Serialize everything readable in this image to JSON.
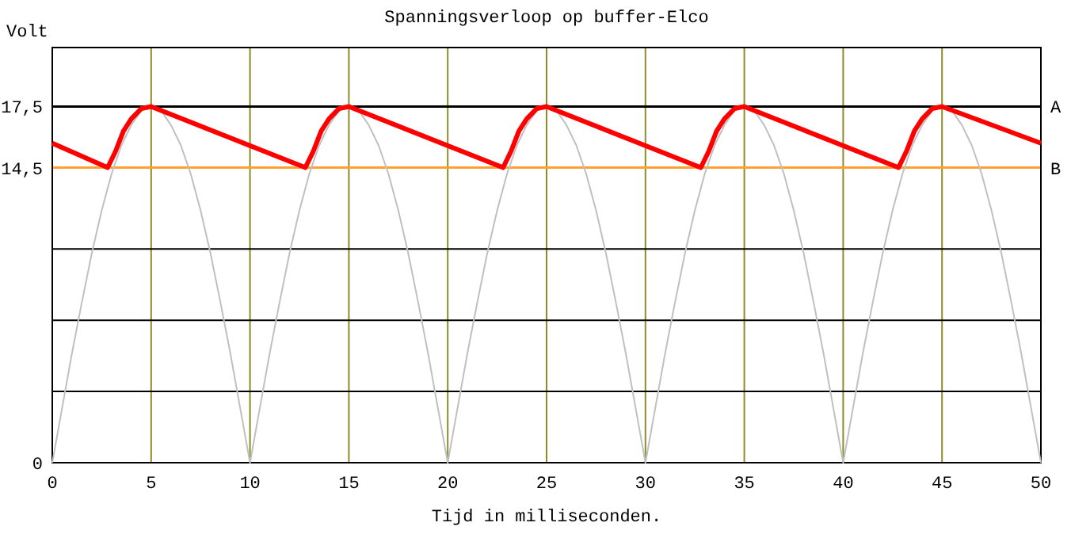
{
  "chart_data": {
    "type": "line",
    "title": "Spanningsverloop op buffer-Elco",
    "xlabel": "Tijd in milliseconden.",
    "ylabel": "Volt",
    "xlim": [
      0,
      50
    ],
    "xticks": [
      0,
      5,
      10,
      15,
      20,
      25,
      30,
      35,
      40,
      45,
      50
    ],
    "ylim": [
      0,
      20.4
    ],
    "yticks": [
      0,
      {
        "value": 3.5,
        "label": null
      },
      {
        "value": 7,
        "label": null
      },
      {
        "value": 10.5,
        "label": null
      },
      {
        "value": 14.5,
        "label": "14,5"
      },
      {
        "value": 17.5,
        "label": "17,5"
      }
    ],
    "grid": true,
    "line_style": "solid",
    "ref_lines": [
      {
        "axis": "y",
        "value": 17.5,
        "label": "A",
        "color": "#000000"
      },
      {
        "axis": "y",
        "value": 14.5,
        "label": "B",
        "color": "#ffa030"
      }
    ],
    "series": [
      {
        "color": "#c0c0c0",
        "x": [
          0,
          0.5,
          1,
          1.5,
          2,
          2.5,
          3,
          3.5,
          4,
          4.5,
          5,
          5.5,
          6,
          6.5,
          7,
          7.5,
          8,
          8.5,
          9,
          9.5,
          10,
          10.5,
          11,
          11.5,
          12,
          12.5,
          13,
          13.5,
          14,
          14.5,
          15,
          15.5,
          16,
          16.5,
          17,
          17.5,
          18,
          18.5,
          19,
          19.5,
          20,
          20.5,
          21,
          21.5,
          22,
          22.5,
          23,
          23.5,
          24,
          24.5,
          25,
          25.5,
          26,
          26.5,
          27,
          27.5,
          28,
          28.5,
          29,
          29.5,
          30,
          30.5,
          31,
          31.5,
          32,
          32.5,
          33,
          33.5,
          34,
          34.5,
          35,
          35.5,
          36,
          36.5,
          37,
          37.5,
          38,
          38.5,
          39,
          39.5,
          40,
          40.5,
          41,
          41.5,
          42,
          42.5,
          43,
          43.5,
          44,
          44.5,
          45,
          45.5,
          46,
          46.5,
          47,
          47.5,
          48,
          48.5,
          49,
          49.5,
          50
        ],
        "values": [
          0,
          2.7,
          5.4,
          7.9,
          10.3,
          12.4,
          14.2,
          15.6,
          16.6,
          17.3,
          17.5,
          17.3,
          16.6,
          15.6,
          14.2,
          12.4,
          10.3,
          7.9,
          5.4,
          2.7,
          0,
          2.7,
          5.4,
          7.9,
          10.3,
          12.4,
          14.2,
          15.6,
          16.6,
          17.3,
          17.5,
          17.3,
          16.6,
          15.6,
          14.2,
          12.4,
          10.3,
          7.9,
          5.4,
          2.7,
          0,
          2.7,
          5.4,
          7.9,
          10.3,
          12.4,
          14.2,
          15.6,
          16.6,
          17.3,
          17.5,
          17.3,
          16.6,
          15.6,
          14.2,
          12.4,
          10.3,
          7.9,
          5.4,
          2.7,
          0,
          2.7,
          5.4,
          7.9,
          10.3,
          12.4,
          14.2,
          15.6,
          16.6,
          17.3,
          17.5,
          17.3,
          16.6,
          15.6,
          14.2,
          12.4,
          10.3,
          7.9,
          5.4,
          2.7,
          0,
          2.7,
          5.4,
          7.9,
          10.3,
          12.4,
          14.2,
          15.6,
          16.6,
          17.3,
          17.5,
          17.3,
          16.6,
          15.6,
          14.2,
          12.4,
          10.3,
          7.9,
          5.4,
          2.7,
          0
        ]
      },
      {
        "color": "#ff0000",
        "x": [
          0,
          2.8,
          3.2,
          3.6,
          4,
          4.5,
          5,
          12.8,
          13.2,
          13.6,
          14,
          14.5,
          15,
          22.8,
          23.2,
          23.6,
          24,
          24.5,
          25,
          32.8,
          33.2,
          33.6,
          34,
          34.5,
          35,
          42.8,
          43.2,
          43.6,
          44,
          44.5,
          45,
          50
        ],
        "values": [
          15.7,
          14.5,
          15.3,
          16.3,
          16.9,
          17.4,
          17.5,
          14.5,
          15.3,
          16.3,
          16.9,
          17.4,
          17.5,
          14.5,
          15.3,
          16.3,
          16.9,
          17.4,
          17.5,
          14.5,
          15.3,
          16.3,
          16.9,
          17.4,
          17.5,
          14.5,
          15.3,
          16.3,
          16.9,
          17.4,
          17.5,
          15.7
        ]
      }
    ]
  }
}
